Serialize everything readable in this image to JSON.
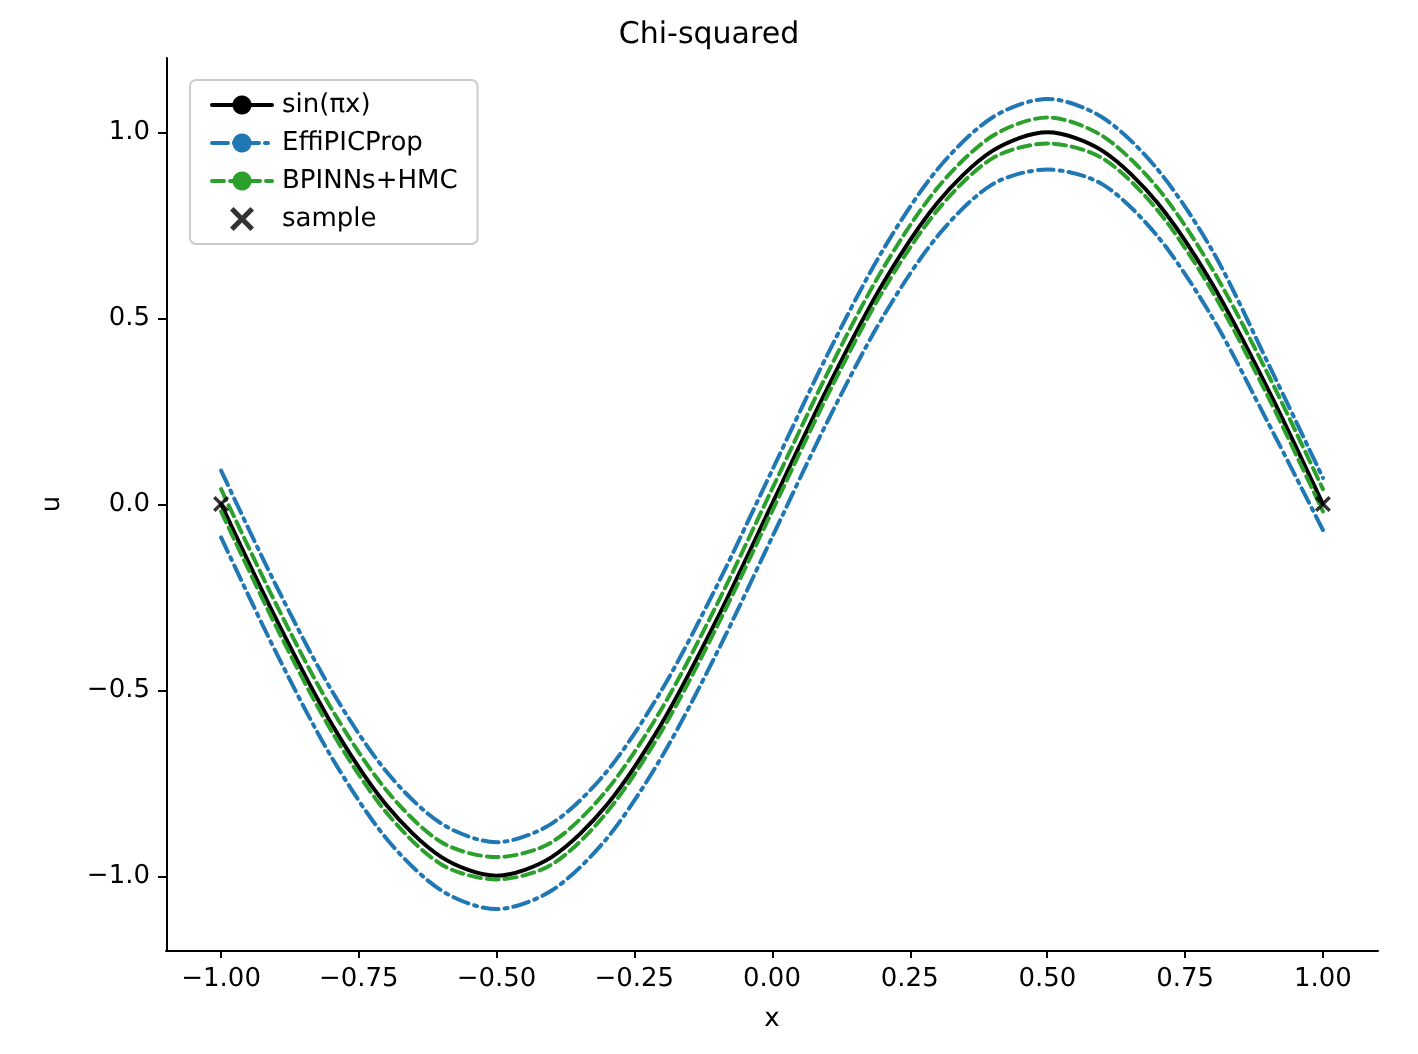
{
  "chart_data": {
    "type": "line",
    "title": "Chi-squared",
    "xlabel": "x",
    "ylabel": "u",
    "x": [
      -1,
      -0.9,
      -0.8,
      -0.7,
      -0.6,
      -0.5,
      -0.4,
      -0.3,
      -0.2,
      -0.1,
      0,
      0.1,
      0.2,
      0.3,
      0.4,
      0.5,
      0.6,
      0.7,
      0.8,
      0.9,
      1
    ],
    "series": [
      {
        "name": "sin(πx)",
        "color": "#000000",
        "line_style": "solid",
        "values": [
          0,
          -0.31,
          -0.59,
          -0.81,
          -0.95,
          -1,
          -0.95,
          -0.81,
          -0.59,
          -0.31,
          0,
          0.31,
          0.59,
          0.81,
          0.95,
          1,
          0.95,
          0.81,
          0.59,
          0.31,
          0
        ]
      },
      {
        "name": "EffiPICProp",
        "color": "#1f77b4",
        "line_style": "dashdot",
        "values": [
          0.09,
          -0.22,
          -0.5,
          -0.72,
          -0.86,
          -0.91,
          -0.86,
          -0.72,
          -0.5,
          -0.22,
          0.09,
          0.4,
          0.68,
          0.9,
          1.04,
          1.09,
          1.04,
          0.9,
          0.68,
          0.38,
          0.07
        ]
      },
      {
        "color": "#1f77b4",
        "line_style": "dashdot",
        "values": [
          -0.09,
          -0.4,
          -0.68,
          -0.9,
          -1.04,
          -1.09,
          -1.04,
          -0.9,
          -0.68,
          -0.4,
          -0.09,
          0.22,
          0.5,
          0.72,
          0.86,
          0.9,
          0.86,
          0.72,
          0.5,
          0.22,
          -0.07
        ]
      },
      {
        "name": "BPINNs+HMC",
        "color": "#2ca02c",
        "line_style": "dashed",
        "values": [
          0.04,
          -0.27,
          -0.55,
          -0.77,
          -0.91,
          -0.95,
          -0.91,
          -0.77,
          -0.55,
          -0.27,
          0.04,
          0.35,
          0.63,
          0.85,
          0.99,
          1.04,
          0.99,
          0.85,
          0.63,
          0.35,
          0.04
        ]
      },
      {
        "color": "#2ca02c",
        "line_style": "dashed",
        "values": [
          -0.02,
          -0.33,
          -0.61,
          -0.83,
          -0.97,
          -1.01,
          -0.97,
          -0.83,
          -0.61,
          -0.33,
          -0.02,
          0.29,
          0.57,
          0.79,
          0.93,
          0.97,
          0.93,
          0.79,
          0.57,
          0.29,
          -0.02
        ]
      },
      {
        "name": "sample",
        "type": "scatter",
        "marker": "cross",
        "color": "#000000",
        "x": [
          -1,
          1
        ],
        "values": [
          0,
          0
        ]
      }
    ],
    "xlim": [
      -1.1,
      1.1
    ],
    "xticks": [
      {
        "value": -1,
        "label": "−1.00"
      },
      {
        "value": -0.75,
        "label": "−0.75"
      },
      {
        "value": -0.5,
        "label": "−0.50"
      },
      {
        "value": -0.25,
        "label": "−0.25"
      },
      {
        "value": 0,
        "label": "0.00"
      },
      {
        "value": 0.25,
        "label": "0.25"
      },
      {
        "value": 0.5,
        "label": "0.50"
      },
      {
        "value": 0.75,
        "label": "0.75"
      },
      {
        "value": 1,
        "label": "1.00"
      }
    ],
    "ylim": [
      -1.2,
      1.2
    ],
    "yticks": [
      {
        "value": -1,
        "label": "−1.0"
      },
      {
        "value": -0.5,
        "label": "−0.5"
      },
      {
        "value": 0,
        "label": "0.0"
      },
      {
        "value": 0.5,
        "label": "0.5"
      },
      {
        "value": 1,
        "label": "1.0"
      }
    ],
    "legend": "top left",
    "grid": false
  }
}
